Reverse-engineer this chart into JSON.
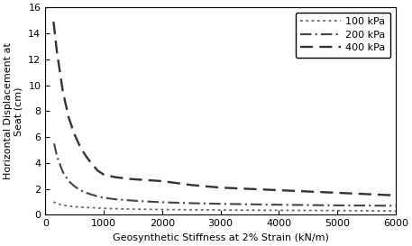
{
  "title": "",
  "xlabel": "Geosynthetic Stiffness at 2% Strain (kN/m)",
  "ylabel": "Horizontal Displacement at\nSeat (cm)",
  "xlim": [
    0,
    6000
  ],
  "ylim": [
    0,
    16
  ],
  "xticks": [
    0,
    1000,
    2000,
    3000,
    4000,
    5000,
    6000
  ],
  "yticks": [
    0,
    2,
    4,
    6,
    8,
    10,
    12,
    14,
    16
  ],
  "series": [
    {
      "label": "100 kPa",
      "linestyle": "dotted",
      "color": "#666666",
      "linewidth": 1.3,
      "x": [
        140,
        200,
        300,
        400,
        500,
        600,
        700,
        800,
        900,
        1000,
        1200,
        1500,
        2000,
        2500,
        3000,
        4000,
        5000,
        6000
      ],
      "y": [
        1.0,
        0.85,
        0.75,
        0.68,
        0.63,
        0.6,
        0.57,
        0.55,
        0.53,
        0.5,
        0.47,
        0.44,
        0.41,
        0.39,
        0.37,
        0.35,
        0.33,
        0.3
      ]
    },
    {
      "label": "200 kPa",
      "linestyle": "dashdot",
      "color": "#444444",
      "linewidth": 1.5,
      "x": [
        150,
        200,
        300,
        400,
        500,
        600,
        700,
        800,
        900,
        1000,
        1200,
        1500,
        1650,
        2000,
        2500,
        3000,
        4000,
        5000,
        6000
      ],
      "y": [
        5.5,
        4.5,
        3.3,
        2.6,
        2.2,
        1.9,
        1.7,
        1.55,
        1.42,
        1.32,
        1.2,
        1.1,
        1.05,
        0.97,
        0.9,
        0.85,
        0.78,
        0.73,
        0.7
      ]
    },
    {
      "label": "400 kPa",
      "linestyle": "dashed",
      "color": "#333333",
      "linewidth": 1.7,
      "dash_seq": [
        6,
        3
      ],
      "x": [
        140,
        200,
        300,
        400,
        500,
        600,
        700,
        800,
        900,
        1000,
        1200,
        1500,
        2000,
        2500,
        3000,
        4000,
        5000,
        6000
      ],
      "y": [
        14.9,
        12.5,
        9.5,
        7.5,
        6.2,
        5.2,
        4.5,
        3.9,
        3.4,
        3.1,
        2.9,
        2.75,
        2.6,
        2.3,
        2.1,
        1.9,
        1.7,
        1.5
      ]
    }
  ],
  "legend_loc": "upper right",
  "legend_fontsize": 8,
  "axis_fontsize": 8,
  "tick_fontsize": 8,
  "ylabel_fontsize": 8,
  "background_color": "#ffffff"
}
